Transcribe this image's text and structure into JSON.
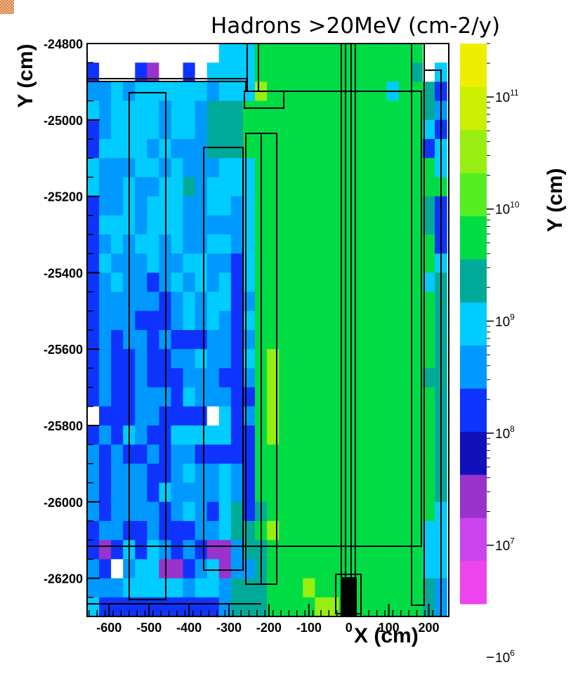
{
  "chart_data": {
    "type": "heatmap",
    "title": "Hadrons >20MeV (cm-2/y)",
    "xlabel": "X (cm)",
    "ylabel": "Y (cm)",
    "zlabel": "Y (cm)",
    "xlim": [
      -655,
      250
    ],
    "ylim": [
      -26300,
      -24800
    ],
    "x_ticks": [
      -600,
      -500,
      -400,
      -300,
      -200,
      -100,
      0,
      100,
      200
    ],
    "y_ticks": [
      -24800,
      -25000,
      -25200,
      -25400,
      -25600,
      -25800,
      -26000,
      -26200
    ],
    "z_scale": "log",
    "z_range": [
      3000000,
      300000000000
    ],
    "z_tick_labels": [
      {
        "value": 100000000000,
        "base": "10",
        "exp": "11"
      },
      {
        "value": 10000000000,
        "base": "10",
        "exp": "10"
      },
      {
        "value": 1000000000,
        "base": "10",
        "exp": "9"
      },
      {
        "value": 100000000,
        "base": "10",
        "exp": "8"
      },
      {
        "value": 10000000,
        "base": "10",
        "exp": "7"
      },
      {
        "value": 1000000,
        "base": "10",
        "exp": "6"
      }
    ],
    "colorbar_colors": [
      "#ee44ee",
      "#cc44ee",
      "#9933cc",
      "#1111bb",
      "#0f33ff",
      "#0099ff",
      "#00ccff",
      "#00aa99",
      "#00dd44",
      "#55ee22",
      "#99ee11",
      "#ccee00",
      "#eeee00"
    ],
    "grid": false,
    "legend": "colorbar-right",
    "cell_grid": {
      "x_edges": [
        -655,
        -625,
        -595,
        -565,
        -535,
        -505,
        -475,
        -445,
        -415,
        -385,
        -355,
        -325,
        -295,
        -265,
        -235,
        -205,
        -175,
        -145,
        -115,
        -85,
        -55,
        -25,
        5,
        35,
        65,
        95,
        125,
        155,
        185,
        215,
        245
      ],
      "y_top": -24800,
      "cell_height": 50,
      "rows": [
        "wwwwwwwwwwwxxxggggggggggggggww",
        "BwwwBpwwBwxxxxgggggggggggggqwx",
        "ssxsxxxxxxsxxxkggggggggggxggqB",
        "xsxxxxsxxsqqqgggggggggggggggqs",
        "BsxxxxsxxsqqqgggggggggggggggxB",
        "BxxxxsxsssqqqgggggggggggggggBx",
        "xsssxxsxsssxxxgggggggggggggggx",
        "xssxssxxqsxxxxgggggggggggggggg",
        "BssxsxxxssxxsxggggggggggggggqB",
        "BxxxsxxxsssssxggggggggggggggqB",
        "BsxsxxsxssxxsxgggggggggggggggB",
        "BxsssxssxxssBxgggggggggggggggx",
        "BsxssBsxsxsxBxggggggggggggggxq",
        "BsssssBsxsxxBsgggggggggggggggq",
        "BsssBBBsxsxsBxgggggggggggggggq",
        "BsBssBsBBBssBsgggggggggggggggq",
        "BsBBsBBssxssBxgkgggggggggggggq",
        "BsBBsBBBsssBBsgkggggggggggggqq",
        "BsBBsssBxsssBBgkgggggggggggggq",
        "wBBBssBBBBwxBsgkgggggggggggggq",
        "BsBxsBBxxxxxBBgkgggggggggggggq",
        "sBsBBsBssBBBBBgggggggggggggggq",
        "sBsssBBsxssxsBgggggggggggggggq",
        "sBsssBxssssxsBgggggggggggggggq",
        "sBssssBsxsBxqBqggggggggggggggx",
        "BssBBsBBBssxqqgkggggggggggggxx",
        "BpBxBxsBsBppsqqgggggggggggggxx",
        "sBwsxxppBsxpssqgggggggggggggxx",
        "sssxxxxxsxxsqqqgggkgggggggggqs",
        "xBBBBBBBBBBsqqqggggkkgggggggqs",
        "BBBBBBBBBBBBqqqggggkkgggggggxx"
      ],
      "codes": {
        "w": "#ffffff",
        "B": "#0f33ff",
        "s": "#0099ff",
        "x": "#00ccff",
        "q": "#00aa99",
        "g": "#00dd44",
        "k": "#99ee11",
        "p": "#9933cc"
      }
    }
  }
}
